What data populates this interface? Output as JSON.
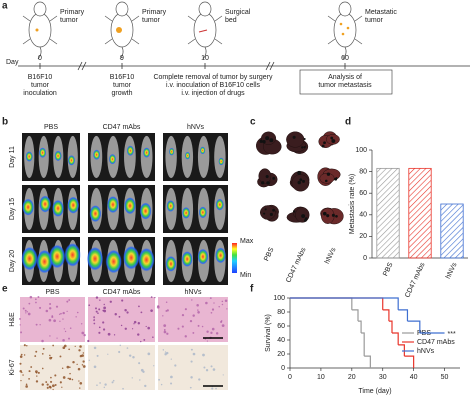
{
  "panel_labels": [
    "a",
    "b",
    "c",
    "d",
    "e",
    "f"
  ],
  "timeline": {
    "axis_label": "Day",
    "steps": [
      {
        "day": 0,
        "mouse_label": [
          "Primary",
          "tumor"
        ],
        "description": [
          "B16F10",
          "tumor",
          "inoculation"
        ]
      },
      {
        "day": 9,
        "mouse_label": [
          "Primary",
          "tumor"
        ],
        "description": [
          "B16F10",
          "tumor",
          "growth"
        ]
      },
      {
        "day": 10,
        "mouse_label": [
          "Surgical",
          "bed"
        ],
        "description": [
          "Complete removal of tumor by surgery",
          "i.v. inoculation of B16F10 cells",
          "i.v. injection of drugs"
        ]
      },
      {
        "day": 60,
        "mouse_label": [
          "Metastatic",
          "tumor"
        ],
        "description": [
          "Analysis of",
          "tumor metastasis"
        ]
      }
    ]
  },
  "imaging": {
    "groups": [
      "PBS",
      "CD47 mAbs",
      "hNVs"
    ],
    "days": [
      "Day 11",
      "Day 15",
      "Day 20"
    ],
    "scale": {
      "max": "Max",
      "min": "Min"
    }
  },
  "lungs": {
    "groups": [
      "PBS",
      "CD47 mAbs",
      "hNVs"
    ]
  },
  "histology": {
    "groups": [
      "PBS",
      "CD47 mAbs",
      "hNVs"
    ],
    "stains": [
      "H&E",
      "Ki-67"
    ]
  },
  "chart_data": [
    {
      "type": "bar",
      "y_label": "Metastasis rate (%)",
      "categories": [
        "PBS",
        "CD47 mAbs",
        "hNVs"
      ],
      "values": [
        83,
        83,
        50
      ],
      "colors": [
        "#999999",
        "#e8352b",
        "#3f6fd1"
      ],
      "hatch": true,
      "ylim": [
        0,
        100
      ],
      "yticks": [
        0,
        20,
        40,
        60,
        80,
        100
      ]
    },
    {
      "type": "step",
      "x_label": "Time (day)",
      "y_label": "Survival (%)",
      "annotation": "***",
      "xlim": [
        0,
        55
      ],
      "xticks": [
        0,
        10,
        20,
        30,
        40,
        50
      ],
      "ylim": [
        0,
        100
      ],
      "yticks": [
        0,
        20,
        40,
        60,
        80,
        100
      ],
      "legend": "right",
      "series": [
        {
          "name": "PBS",
          "color": "#9a9a9a",
          "x": [
            0,
            20,
            22,
            23,
            24,
            26
          ],
          "values": [
            100,
            83,
            67,
            50,
            17,
            0
          ]
        },
        {
          "name": "CD47 mAbs",
          "color": "#e8352b",
          "x": [
            0,
            30,
            32,
            33,
            35,
            37,
            40
          ],
          "values": [
            100,
            83,
            67,
            50,
            33,
            17,
            0
          ]
        },
        {
          "name": "hNVs",
          "color": "#3f6fd1",
          "x": [
            0,
            35,
            38,
            42,
            50
          ],
          "values": [
            100,
            83,
            67,
            50,
            50
          ]
        }
      ]
    }
  ]
}
